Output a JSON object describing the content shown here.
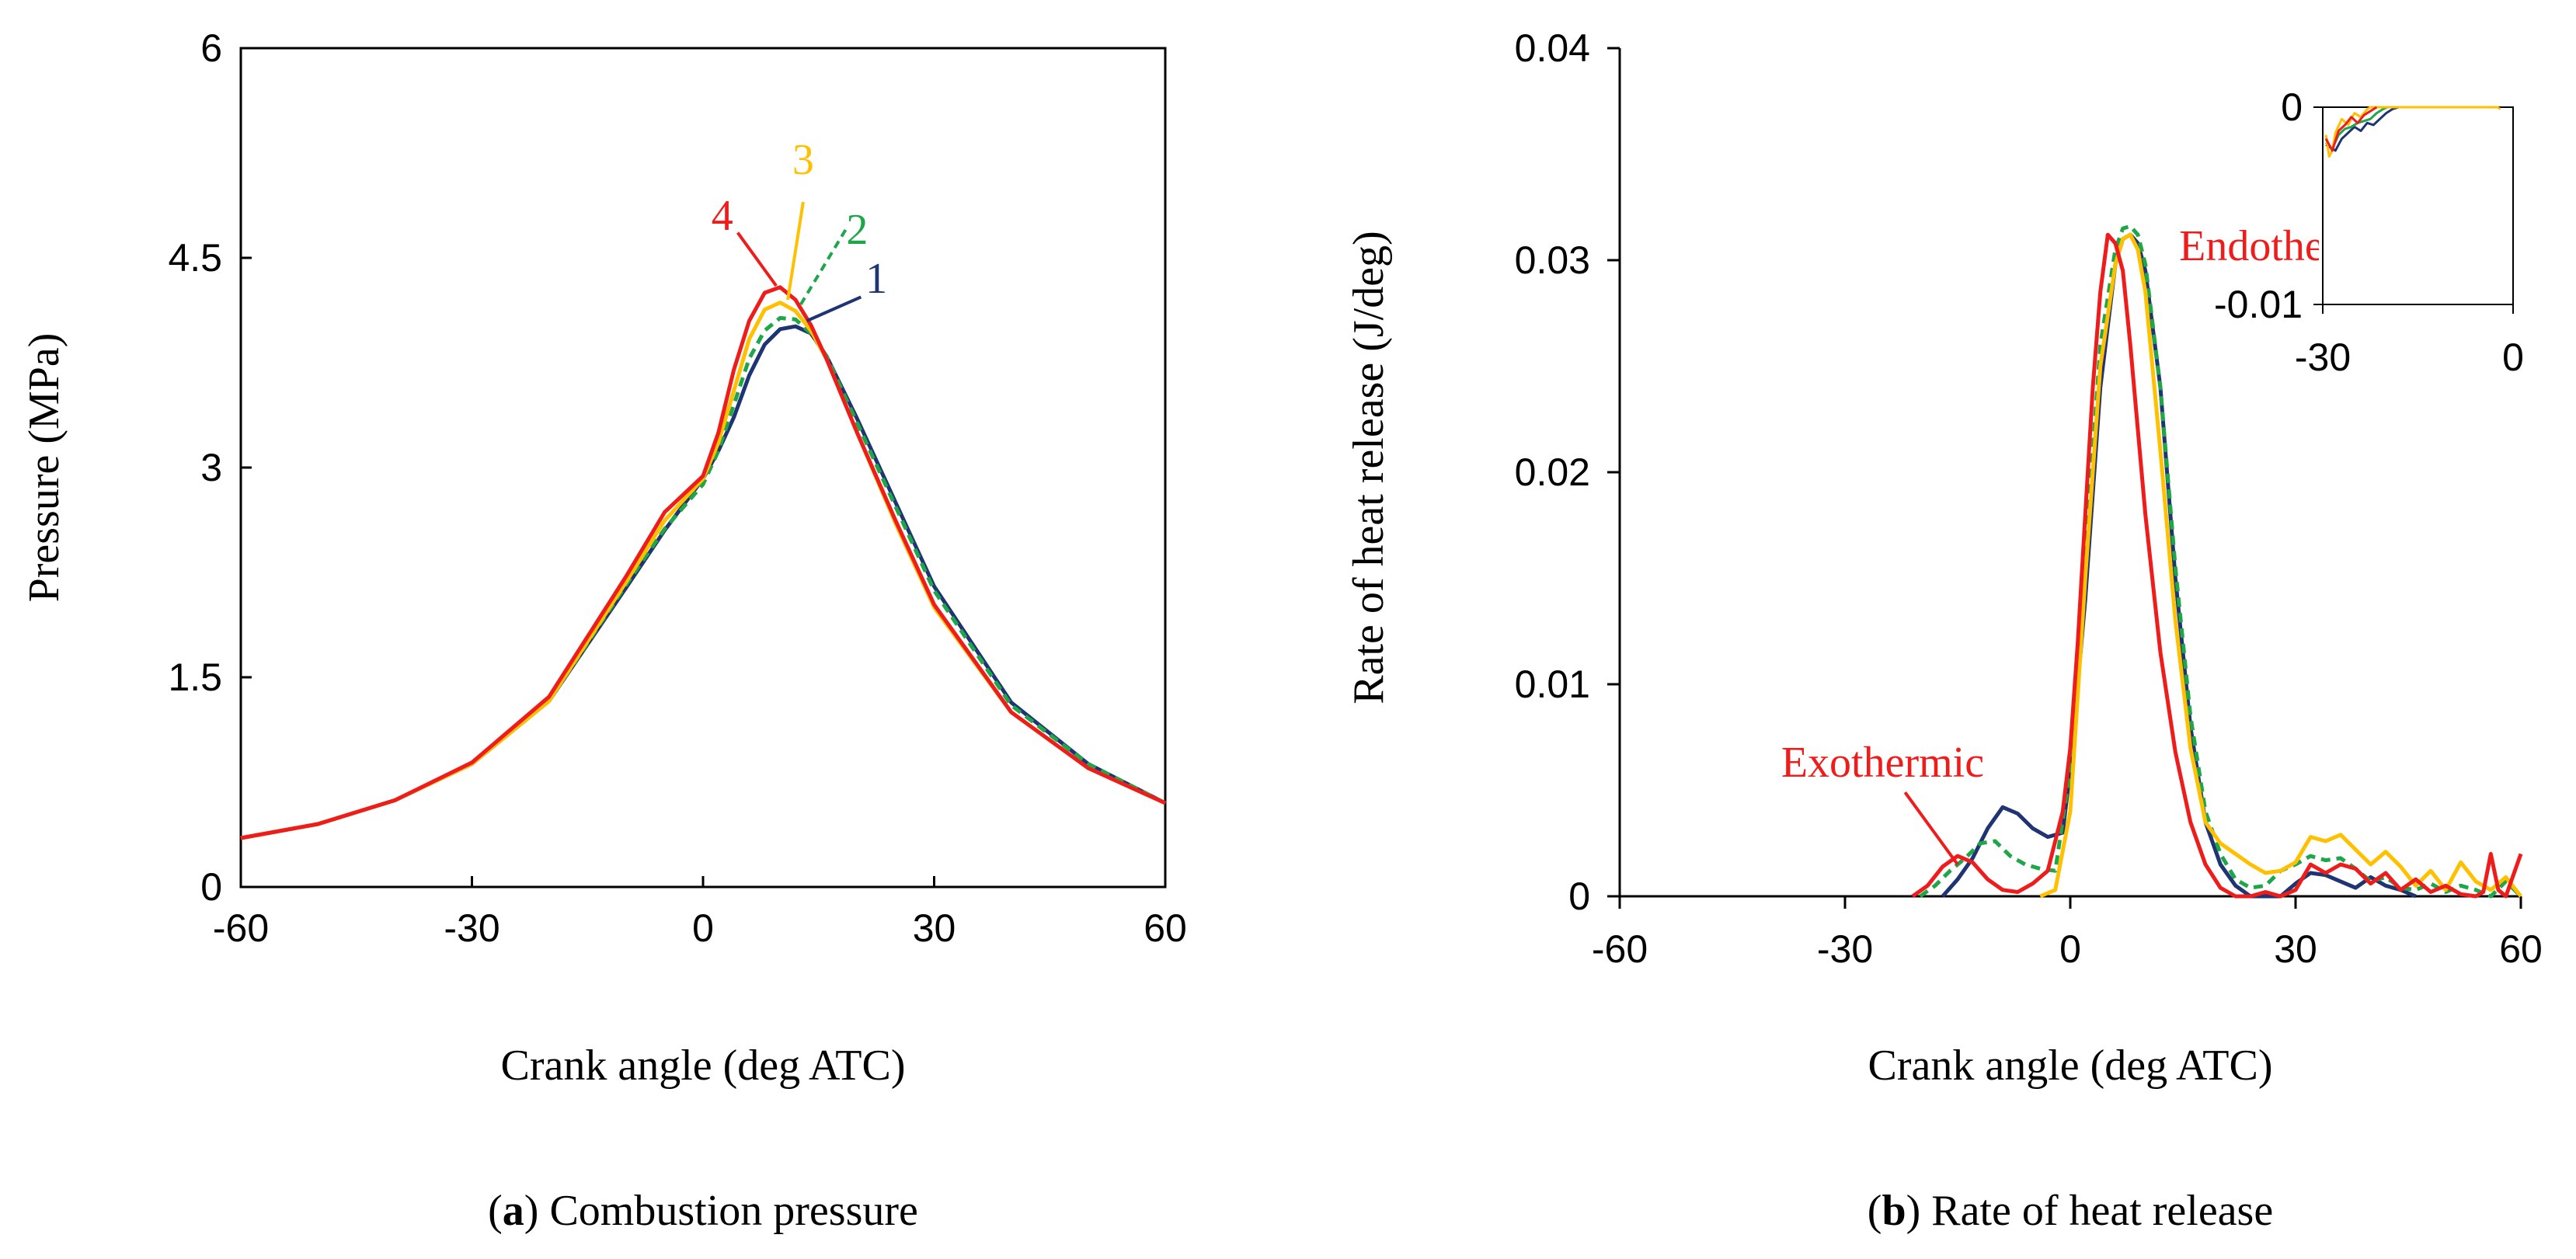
{
  "colors": {
    "s1": "#1f3473",
    "s2": "#20a64a",
    "s3": "#ffc000",
    "s4": "#ef1c1c",
    "ann_red": "#ef1c1c"
  },
  "chart_data": [
    {
      "id": "a",
      "type": "line",
      "caption_letter": "a",
      "caption_text": ") Combustion pressure",
      "xlabel": "Crank angle (deg ATC)",
      "ylabel": "Pressure (MPa)",
      "xlim": [
        -60,
        60
      ],
      "ylim": [
        0,
        6
      ],
      "xticks": [
        -60,
        -30,
        0,
        30,
        60
      ],
      "yticks": [
        0,
        1.5,
        3,
        4.5,
        6
      ],
      "ytick_labels": [
        "0",
        "1.5",
        "3",
        "4.5",
        "6"
      ],
      "series": [
        {
          "name": "1",
          "color_key": "s1",
          "dashed": false,
          "x": [
            -60,
            -50,
            -40,
            -30,
            -20,
            -10,
            -5,
            0,
            2,
            4,
            6,
            8,
            10,
            12,
            14,
            16,
            20,
            25,
            30,
            40,
            50,
            60
          ],
          "y": [
            0.35,
            0.45,
            0.62,
            0.88,
            1.33,
            2.14,
            2.55,
            2.92,
            3.12,
            3.36,
            3.66,
            3.88,
            3.99,
            4.01,
            3.96,
            3.8,
            3.35,
            2.75,
            2.15,
            1.32,
            0.88,
            0.6
          ]
        },
        {
          "name": "2",
          "color_key": "s2",
          "dashed": true,
          "x": [
            -60,
            -50,
            -40,
            -30,
            -20,
            -10,
            -5,
            0,
            2,
            4,
            6,
            8,
            10,
            12,
            14,
            16,
            20,
            25,
            30,
            40,
            50,
            60
          ],
          "y": [
            0.35,
            0.45,
            0.62,
            0.88,
            1.33,
            2.16,
            2.56,
            2.88,
            3.12,
            3.45,
            3.78,
            3.98,
            4.07,
            4.06,
            3.96,
            3.8,
            3.32,
            2.72,
            2.12,
            1.3,
            0.88,
            0.6
          ]
        },
        {
          "name": "3",
          "color_key": "s3",
          "dashed": false,
          "x": [
            -60,
            -50,
            -40,
            -30,
            -20,
            -10,
            -5,
            0,
            2,
            4,
            6,
            8,
            10,
            12,
            14,
            16,
            20,
            25,
            30,
            40,
            50,
            60
          ],
          "y": [
            0.35,
            0.45,
            0.62,
            0.88,
            1.33,
            2.18,
            2.62,
            2.92,
            3.18,
            3.55,
            3.92,
            4.13,
            4.18,
            4.12,
            3.98,
            3.78,
            3.25,
            2.6,
            2.0,
            1.25,
            0.85,
            0.6
          ]
        },
        {
          "name": "4",
          "color_key": "s4",
          "dashed": false,
          "x": [
            -60,
            -50,
            -40,
            -30,
            -20,
            -10,
            -5,
            0,
            2,
            4,
            6,
            8,
            10,
            12,
            14,
            16,
            20,
            25,
            30,
            40,
            50,
            60
          ],
          "y": [
            0.35,
            0.45,
            0.62,
            0.89,
            1.36,
            2.22,
            2.68,
            2.94,
            3.25,
            3.7,
            4.05,
            4.25,
            4.29,
            4.2,
            4.02,
            3.78,
            3.25,
            2.62,
            2.02,
            1.25,
            0.85,
            0.6
          ]
        }
      ],
      "annotations": [
        {
          "text": "4",
          "color_key": "s4",
          "x": 2.5,
          "y": 4.7,
          "lx1": 4.5,
          "ly1": 4.68,
          "lx2": 9.5,
          "ly2": 4.3,
          "dashed": false
        },
        {
          "text": "3",
          "color_key": "s3",
          "x": 13,
          "y": 5.1,
          "lx1": 13,
          "ly1": 4.9,
          "lx2": 11.0,
          "ly2": 4.2,
          "dashed": false
        },
        {
          "text": "2",
          "color_key": "s2",
          "x": 20,
          "y": 4.6,
          "lx1": 18.5,
          "ly1": 4.7,
          "lx2": 12.5,
          "ly2": 4.15,
          "dashed": true
        },
        {
          "text": "1",
          "color_key": "s1",
          "x": 22.5,
          "y": 4.25,
          "lx1": 20.5,
          "ly1": 4.22,
          "lx2": 13.5,
          "ly2": 4.05,
          "dashed": false
        }
      ]
    },
    {
      "id": "b",
      "type": "line",
      "caption_letter": "b",
      "caption_text": ") Rate of heat release",
      "xlabel": "Crank angle (deg ATC)",
      "ylabel": "Rate of heat release (J/deg)",
      "xlim": [
        -60,
        60
      ],
      "ylim": [
        0,
        0.04
      ],
      "xticks": [
        -60,
        -30,
        0,
        30,
        60
      ],
      "yticks": [
        0,
        0.01,
        0.02,
        0.03,
        0.04
      ],
      "ytick_labels": [
        "0",
        "0.01",
        "0.02",
        "0.03",
        "0.04"
      ],
      "series": [
        {
          "name": "1",
          "color_key": "s1",
          "dashed": false,
          "x": [
            -17,
            -15,
            -13,
            -11,
            -9,
            -7,
            -5,
            -3,
            -1,
            0,
            2,
            4,
            6,
            7,
            8,
            9,
            10,
            12,
            14,
            16,
            18,
            20,
            22,
            24,
            26,
            28,
            30,
            32,
            34,
            36,
            38,
            40,
            42,
            44,
            46
          ],
          "y": [
            0,
            0.0008,
            0.0018,
            0.0032,
            0.0042,
            0.0039,
            0.0032,
            0.0028,
            0.003,
            0.006,
            0.014,
            0.024,
            0.0298,
            0.031,
            0.0312,
            0.0308,
            0.0295,
            0.024,
            0.015,
            0.008,
            0.0035,
            0.0015,
            0.0005,
            0,
            0,
            0,
            0.0006,
            0.0011,
            0.001,
            0.0007,
            0.0004,
            0.0009,
            0.0005,
            0.0003,
            0
          ]
        },
        {
          "name": "2",
          "color_key": "s2",
          "dashed": true,
          "x": [
            -20,
            -18,
            -16,
            -14,
            -12,
            -10,
            -8,
            -6,
            -4,
            -2,
            0,
            2,
            4,
            6,
            7,
            8,
            9,
            10,
            12,
            14,
            16,
            18,
            20,
            22,
            24,
            26,
            28,
            30,
            32,
            34,
            36,
            38,
            40,
            42,
            44,
            46,
            48,
            50,
            52,
            54,
            56,
            58,
            60
          ],
          "y": [
            0,
            0.0005,
            0.0012,
            0.0018,
            0.0025,
            0.0026,
            0.0019,
            0.0015,
            0.0013,
            0.0012,
            0.006,
            0.016,
            0.026,
            0.0305,
            0.0315,
            0.0316,
            0.0312,
            0.0298,
            0.024,
            0.0155,
            0.0085,
            0.004,
            0.002,
            0.0008,
            0.0004,
            0.0005,
            0.0012,
            0.0015,
            0.0019,
            0.0017,
            0.0018,
            0.0013,
            0.0007,
            0.0009,
            0.0004,
            0.0003,
            0.0006,
            0.0002,
            0.0005,
            0.0003,
            0,
            0.0007,
            0
          ]
        },
        {
          "name": "3",
          "color_key": "s3",
          "dashed": false,
          "x": [
            -4,
            -2,
            0,
            2,
            4,
            6,
            7,
            8,
            9,
            10,
            12,
            14,
            16,
            18,
            20,
            22,
            24,
            26,
            28,
            30,
            32,
            34,
            36,
            38,
            40,
            42,
            44,
            46,
            48,
            50,
            52,
            54,
            56,
            58,
            60
          ],
          "y": [
            0,
            0.0003,
            0.004,
            0.015,
            0.025,
            0.0298,
            0.031,
            0.0312,
            0.0305,
            0.0285,
            0.021,
            0.013,
            0.007,
            0.0035,
            0.0025,
            0.002,
            0.0015,
            0.0011,
            0.0012,
            0.0016,
            0.0028,
            0.0026,
            0.0029,
            0.0022,
            0.0015,
            0.0021,
            0.0014,
            0.0005,
            0.0012,
            0.0003,
            0.0016,
            0.0007,
            0.0003,
            0.0009,
            0
          ]
        },
        {
          "name": "4",
          "color_key": "s4",
          "dashed": false,
          "x": [
            -21,
            -19,
            -17,
            -15,
            -13,
            -11,
            -9,
            -7,
            -5,
            -3,
            -1,
            0,
            1,
            2,
            3,
            4,
            5,
            6,
            7,
            8,
            10,
            12,
            14,
            16,
            18,
            20,
            22,
            24,
            26,
            28,
            30,
            32,
            34,
            36,
            38,
            40,
            42,
            44,
            46,
            48,
            50,
            52,
            54,
            55,
            56,
            57,
            58,
            60
          ],
          "y": [
            0,
            0.0005,
            0.0014,
            0.0019,
            0.0016,
            0.0008,
            0.0003,
            0.0002,
            0.0006,
            0.0012,
            0.004,
            0.007,
            0.012,
            0.018,
            0.024,
            0.0285,
            0.0312,
            0.0308,
            0.0295,
            0.026,
            0.018,
            0.0115,
            0.0068,
            0.0035,
            0.0015,
            0.0004,
            0,
            0,
            0.0002,
            0,
            0.0003,
            0.0015,
            0.0011,
            0.0015,
            0.0013,
            0.0006,
            0.0011,
            0.0003,
            0.0008,
            0.0002,
            0.0005,
            0.0001,
            0,
            0.0002,
            0.002,
            0.0003,
            0,
            0.002
          ]
        }
      ],
      "annotations": [
        {
          "text": "Exothermic",
          "color_key": "ann_red",
          "x": -38.5,
          "y": 0.00565,
          "lx1": -22,
          "ly1": 0.0049,
          "lx2": -15,
          "ly2": 0.0015,
          "dashed": false
        },
        {
          "text": "Endothermic",
          "color_key": "ann_red",
          "x": 14.5,
          "y": 0.03,
          "lx1": null,
          "ly1": null,
          "lx2": null,
          "ly2": null,
          "dashed": false
        }
      ],
      "inset": {
        "xlim": [
          -30,
          0
        ],
        "ylim": [
          -0.01,
          0
        ],
        "xticks": [
          -30,
          0
        ],
        "yticks": [
          -0.01,
          0
        ],
        "xtick_labels": [
          "-30",
          "0"
        ],
        "ytick_labels": [
          "-0.01",
          "0"
        ],
        "series": [
          {
            "name": "1",
            "color_key": "s1",
            "x": [
              -29.5,
              -28,
              -27,
              -26,
              -25,
              -24,
              -23,
              -22,
              -21,
              -20,
              -19,
              -18
            ],
            "y": [
              -0.0019,
              -0.0022,
              -0.0016,
              -0.0013,
              -0.001,
              -0.0012,
              -0.0008,
              -0.0009,
              -0.0006,
              -0.0003,
              -0.0001,
              0
            ]
          },
          {
            "name": "2",
            "color_key": "s2",
            "x": [
              -29.5,
              -28.5,
              -27.5,
              -26.5,
              -25.5,
              -24.5,
              -23.5,
              -22.5,
              -21.5,
              -20.5,
              -19.8
            ],
            "y": [
              -0.0018,
              -0.0021,
              -0.0014,
              -0.0011,
              -0.001,
              -0.0008,
              -0.0007,
              -0.0006,
              -0.0003,
              -0.0001,
              0
            ]
          },
          {
            "name": "3",
            "color_key": "s3",
            "x": [
              -29.5,
              -29,
              -28.5,
              -28,
              -27,
              -26,
              -25,
              -24,
              -23,
              -22.5,
              -2.5,
              -2
            ],
            "y": [
              -0.0014,
              -0.0025,
              -0.0022,
              -0.0013,
              -0.0006,
              -0.0009,
              -0.0003,
              -0.0005,
              -0.0001,
              0,
              0,
              -0.0001
            ]
          },
          {
            "name": "4",
            "color_key": "s4",
            "x": [
              -29.5,
              -28.5,
              -27.5,
              -26.5,
              -25.5,
              -24.5,
              -23.5,
              -22.5,
              -21.5
            ],
            "y": [
              -0.0016,
              -0.0022,
              -0.0012,
              -0.0009,
              -0.0005,
              -0.0008,
              -0.0004,
              -0.0002,
              0
            ]
          }
        ]
      }
    }
  ]
}
